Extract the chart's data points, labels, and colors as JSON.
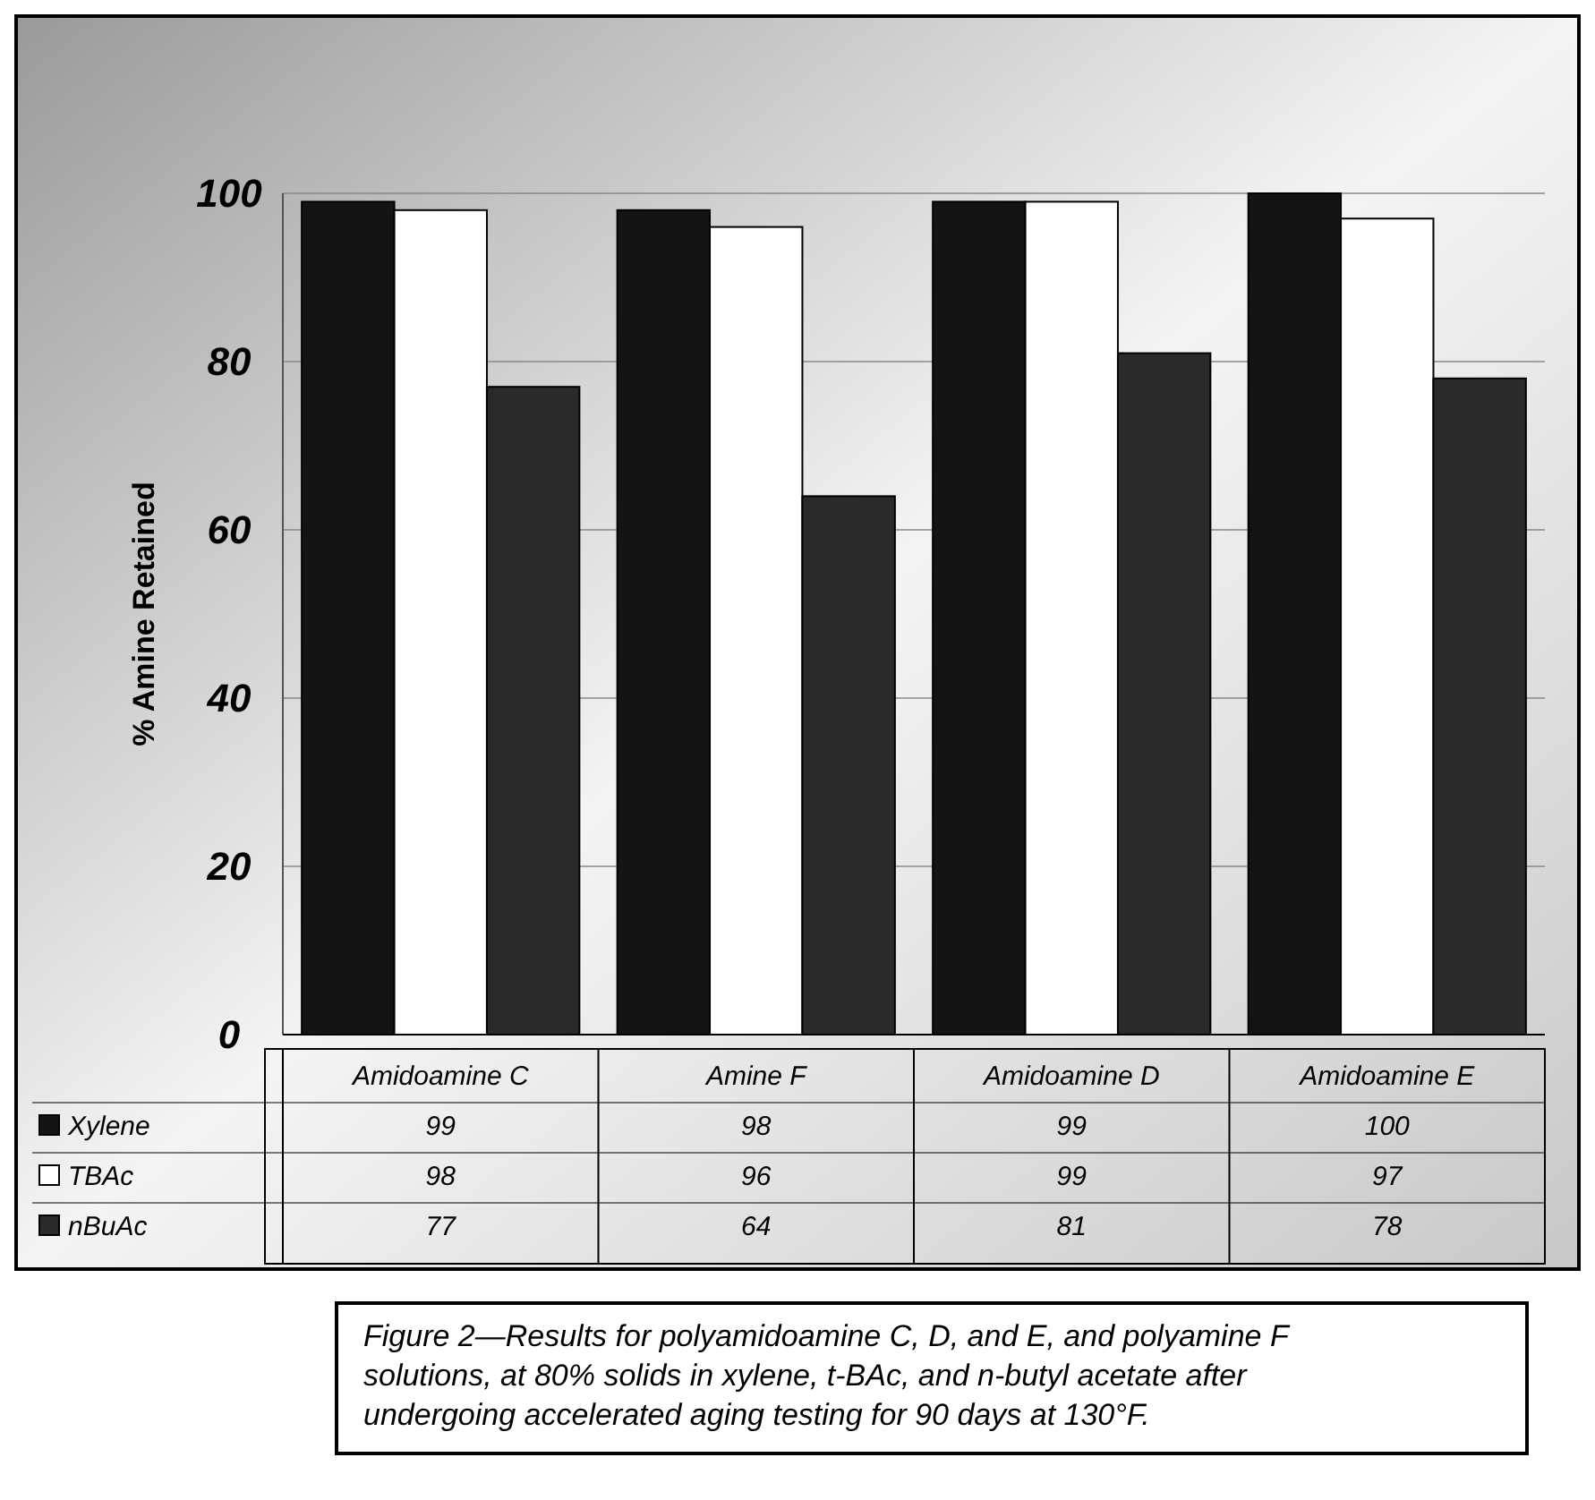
{
  "chart_data": {
    "type": "bar",
    "ylabel": "% Amine Retained",
    "categories": [
      "Amidoamine C",
      "Amine F",
      "Amidoamine D",
      "Amidoamine E"
    ],
    "series": [
      {
        "name": "Xylene",
        "color": "#141414",
        "values": [
          99,
          98,
          99,
          100
        ]
      },
      {
        "name": "TBAc",
        "color": "#ffffff",
        "values": [
          98,
          96,
          99,
          97
        ]
      },
      {
        "name": "nBuAc",
        "color": "#2a2a2a",
        "values": [
          77,
          64,
          81,
          78
        ]
      }
    ],
    "ylim": [
      0,
      100
    ],
    "yticks": [
      0,
      20,
      40,
      60,
      80,
      100
    ],
    "grid": "y",
    "legend": "bottom",
    "data_labels": true,
    "annotations": [
      "Figure 2—Results for polyamidoamine C, D, and E, and polyamine F solutions, at 80% solids in xylene, t-BAc, and n-butyl acetate after undergoing accelerated aging testing for 90 days at 130°F."
    ]
  }
}
